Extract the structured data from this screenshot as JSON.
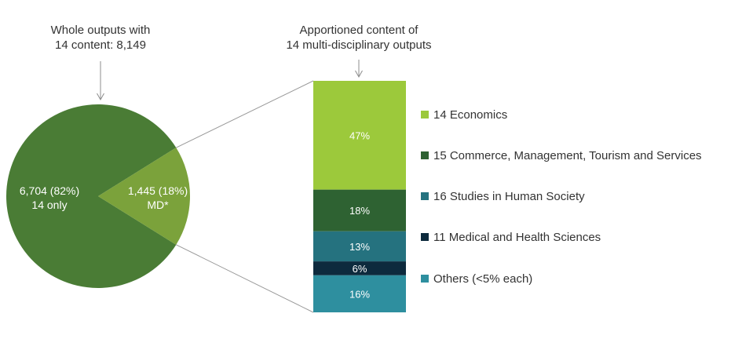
{
  "chart_data": [
    {
      "type": "pie",
      "title_lines": [
        "Whole outputs with",
        "14 content: 8,149"
      ],
      "slices": [
        {
          "label_lines": [
            "6,704 (82%)",
            "14 only"
          ],
          "value": 6704,
          "percent": 82,
          "color": "#4a7c35"
        },
        {
          "label_lines": [
            "1,445 (18%)",
            "MD*"
          ],
          "value": 1445,
          "percent": 18,
          "color": "#7ba23b"
        }
      ]
    },
    {
      "type": "bar",
      "stacked": true,
      "title_lines": [
        "Apportioned content of",
        "14 multi-disciplinary outputs"
      ],
      "segments": [
        {
          "name": "14 Economics",
          "value": 47,
          "label": "47%",
          "color": "#9cc93b"
        },
        {
          "name": "15 Commerce, Management, Tourism and Services",
          "value": 18,
          "label": "18%",
          "color": "#2e6232"
        },
        {
          "name": "16 Studies in Human Society",
          "value": 13,
          "label": "13%",
          "color": "#25727f"
        },
        {
          "name": "11 Medical and Health Sciences",
          "value": 6,
          "label": "6%",
          "color": "#0d2a3d"
        },
        {
          "name": "Others (<5% each)",
          "value": 16,
          "label": "16%",
          "color": "#2e8f9f"
        }
      ],
      "legend_placement": "right"
    }
  ]
}
